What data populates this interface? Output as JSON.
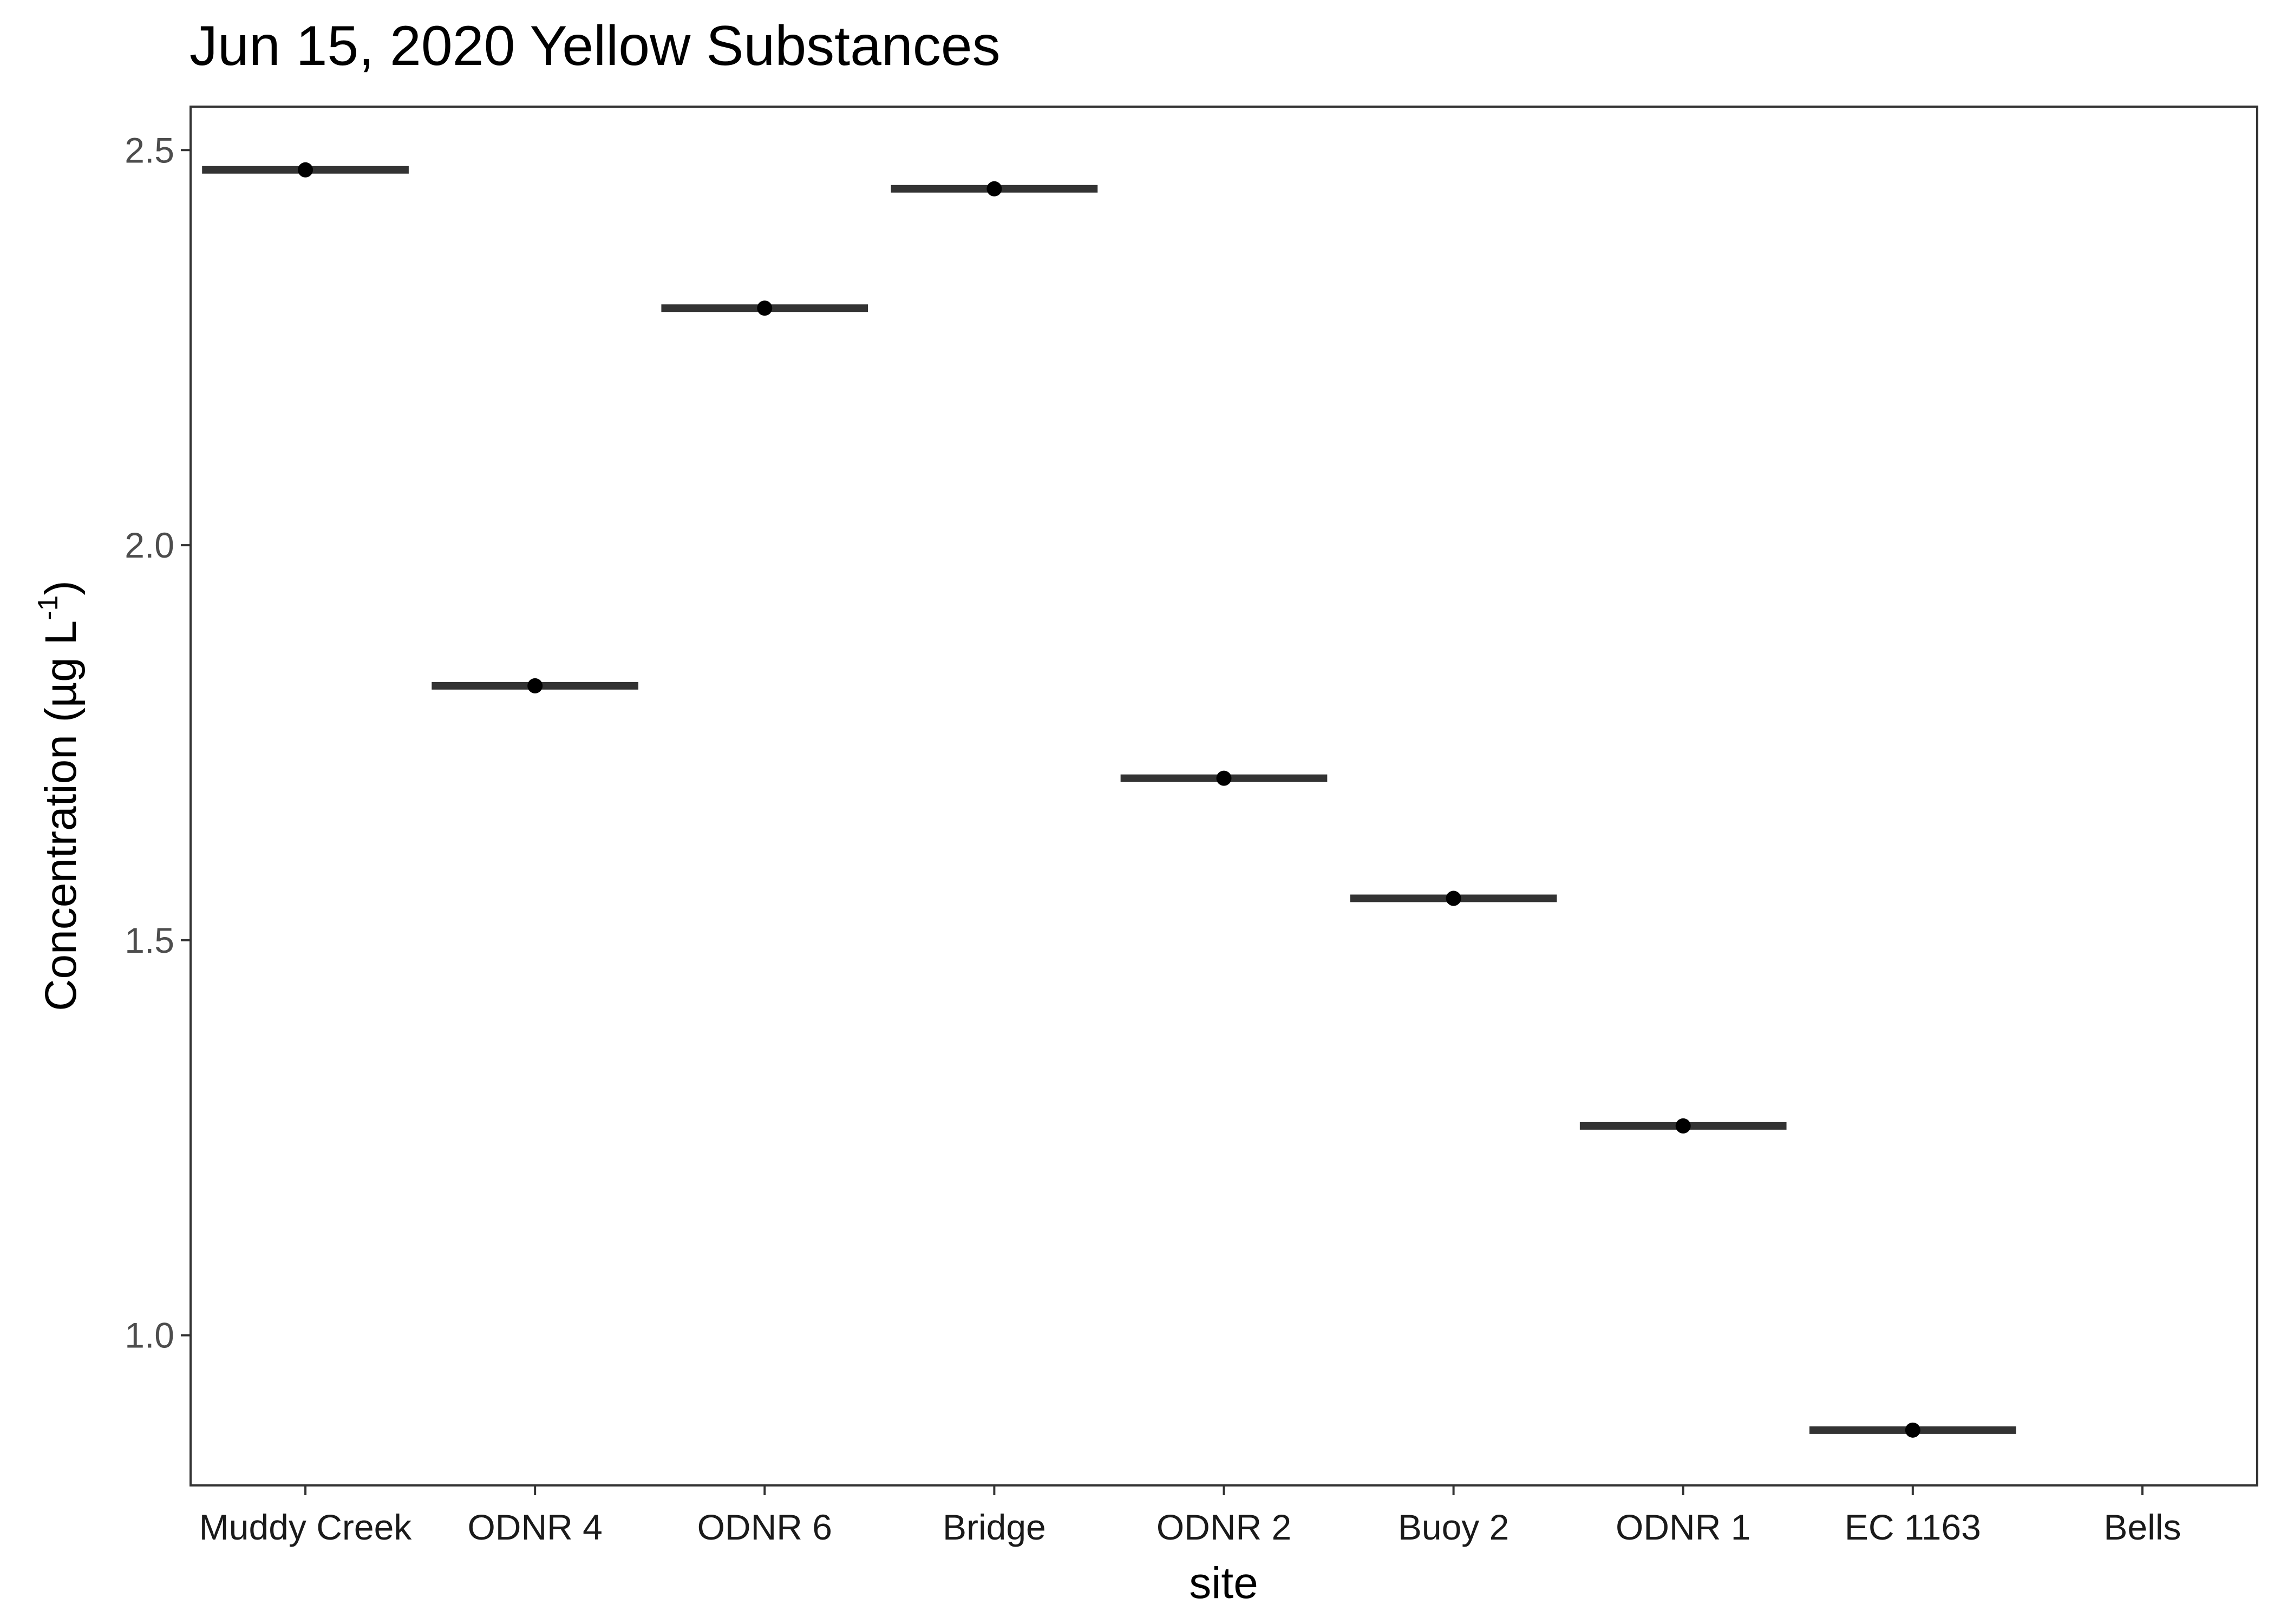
{
  "chart_data": {
    "type": "crossbar",
    "title": "Jun 15, 2020 Yellow Substances",
    "xlabel": "site",
    "ylabel_main": "Concentration (µg L",
    "ylabel_sup": "-1",
    "ylabel_close": ")",
    "categories": [
      "Muddy Creek",
      "ODNR 4",
      "ODNR 6",
      "Bridge",
      "ODNR 2",
      "Buoy 2",
      "ODNR 1",
      "EC 1163",
      "Bells"
    ],
    "values": [
      2.475,
      1.822,
      2.3,
      2.451,
      1.705,
      1.553,
      1.265,
      0.88,
      null
    ],
    "yticks": [
      1.0,
      1.5,
      2.0,
      2.5
    ],
    "ytick_labels": [
      "1.0",
      "1.5",
      "2.0",
      "2.5"
    ],
    "ylim": [
      0.81,
      2.555
    ],
    "grid": false,
    "legend": "none",
    "colors": {
      "bar": "#333333",
      "point": "#000000",
      "panel_border": "#333333",
      "axis_text": "#4d4d4d"
    }
  }
}
